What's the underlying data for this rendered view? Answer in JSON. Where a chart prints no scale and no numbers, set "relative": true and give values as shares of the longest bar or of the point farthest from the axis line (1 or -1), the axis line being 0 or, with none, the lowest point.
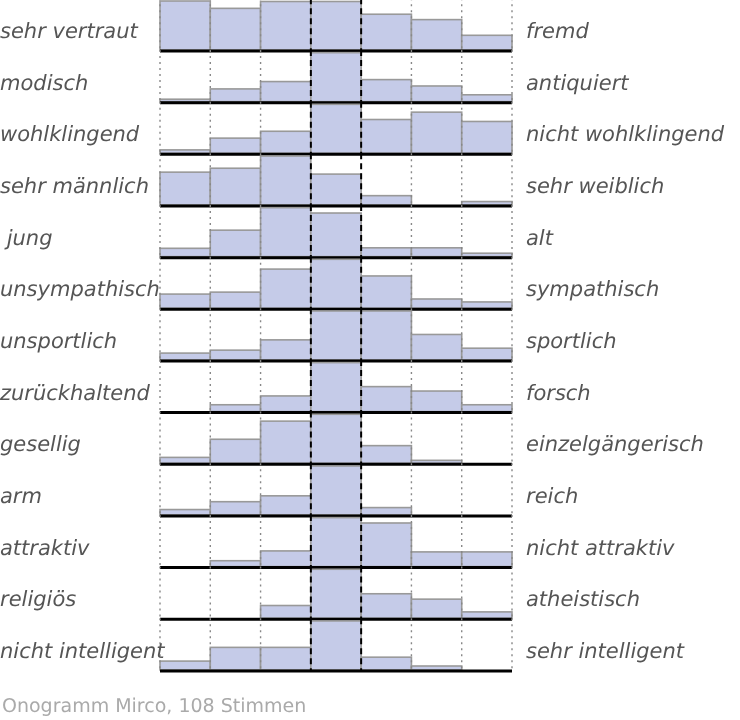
{
  "chart_data": [
    {
      "type": "bar",
      "relative": true,
      "grid": "x",
      "ylabel": "sehr vertraut",
      "y2label": "fremd",
      "categories": [
        null,
        null,
        null,
        null,
        null,
        null,
        null
      ],
      "color": "#c5cbe8",
      "values": [
        1,
        0.85,
        0.99,
        0.99,
        0.73,
        0.62,
        0.3
      ]
    },
    {
      "type": "bar",
      "relative": true,
      "grid": "x",
      "ylabel": "modisch",
      "y2label": "antiquiert",
      "categories": [
        null,
        null,
        null,
        null,
        null,
        null,
        null
      ],
      "color": "#c5cbe8",
      "values": [
        0.05,
        0.26,
        0.41,
        1,
        0.45,
        0.32,
        0.14
      ]
    },
    {
      "type": "bar",
      "relative": true,
      "grid": "x",
      "ylabel": "wohlklingend",
      "y2label": "nicht wohlklingend",
      "categories": [
        null,
        null,
        null,
        null,
        null,
        null,
        null
      ],
      "color": "#c5cbe8",
      "values": [
        0.07,
        0.31,
        0.45,
        1,
        0.69,
        0.84,
        0.65
      ]
    },
    {
      "type": "bar",
      "relative": true,
      "grid": "x",
      "ylabel": "sehr männlich",
      "y2label": "sehr weiblich",
      "categories": [
        null,
        null,
        null,
        null,
        null,
        null,
        null
      ],
      "color": "#c5cbe8",
      "values": [
        0.67,
        0.75,
        1,
        0.63,
        0.19,
        0,
        0.07
      ]
    },
    {
      "type": "bar",
      "relative": true,
      "grid": "x",
      "ylabel": " jung",
      "y2label": "alt",
      "categories": [
        null,
        null,
        null,
        null,
        null,
        null,
        null
      ],
      "color": "#c5cbe8",
      "values": [
        0.17,
        0.54,
        1,
        0.89,
        0.18,
        0.18,
        0.07
      ]
    },
    {
      "type": "bar",
      "relative": true,
      "grid": "x",
      "ylabel": "unsympathisch",
      "y2label": "sympathisch",
      "categories": [
        null,
        null,
        null,
        null,
        null,
        null,
        null
      ],
      "color": "#c5cbe8",
      "values": [
        0.29,
        0.33,
        0.8,
        1,
        0.66,
        0.19,
        0.13
      ]
    },
    {
      "type": "bar",
      "relative": true,
      "grid": "x",
      "ylabel": "unsportlich",
      "y2label": "sportlich",
      "categories": [
        null,
        null,
        null,
        null,
        null,
        null,
        null
      ],
      "color": "#c5cbe8",
      "values": [
        0.14,
        0.2,
        0.41,
        1,
        1,
        0.52,
        0.24
      ]
    },
    {
      "type": "bar",
      "relative": true,
      "grid": "x",
      "ylabel": "zurückhaltend",
      "y2label": "forsch",
      "categories": [
        null,
        null,
        null,
        null,
        null,
        null,
        null
      ],
      "color": "#c5cbe8",
      "values": [
        0,
        0.14,
        0.32,
        1,
        0.51,
        0.42,
        0.14
      ]
    },
    {
      "type": "bar",
      "relative": true,
      "grid": "x",
      "ylabel": "gesellig",
      "y2label": "einzelgängerisch",
      "categories": [
        null,
        null,
        null,
        null,
        null,
        null,
        null
      ],
      "color": "#c5cbe8",
      "values": [
        0.12,
        0.49,
        0.86,
        1,
        0.36,
        0.06,
        0
      ]
    },
    {
      "type": "bar",
      "relative": true,
      "grid": "x",
      "ylabel": "arm",
      "y2label": "reich",
      "categories": [
        null,
        null,
        null,
        null,
        null,
        null,
        null
      ],
      "color": "#c5cbe8",
      "values": [
        0.11,
        0.27,
        0.39,
        1,
        0.15,
        0,
        0
      ]
    },
    {
      "type": "bar",
      "relative": true,
      "grid": "x",
      "ylabel": "attraktiv",
      "y2label": "nicht attraktiv",
      "categories": [
        null,
        null,
        null,
        null,
        null,
        null,
        null
      ],
      "color": "#c5cbe8",
      "values": [
        0,
        0.12,
        0.32,
        1,
        0.89,
        0.3,
        0.3
      ]
    },
    {
      "type": "bar",
      "relative": true,
      "grid": "x",
      "ylabel": "religiös",
      "y2label": "atheistisch",
      "categories": [
        null,
        null,
        null,
        null,
        null,
        null,
        null
      ],
      "color": "#c5cbe8",
      "values": [
        0,
        0,
        0.26,
        1,
        0.5,
        0.39,
        0.13
      ]
    },
    {
      "type": "bar",
      "relative": true,
      "grid": "x",
      "ylabel": "nicht intelligent",
      "y2label": "sehr intelligent",
      "categories": [
        null,
        null,
        null,
        null,
        null,
        null,
        null
      ],
      "color": "#c5cbe8",
      "values": [
        0.18,
        0.46,
        0.46,
        1,
        0.26,
        0.08,
        0
      ],
      "annotations": [
        "Onogramm Mirco, 108 Stimmen"
      ]
    }
  ]
}
